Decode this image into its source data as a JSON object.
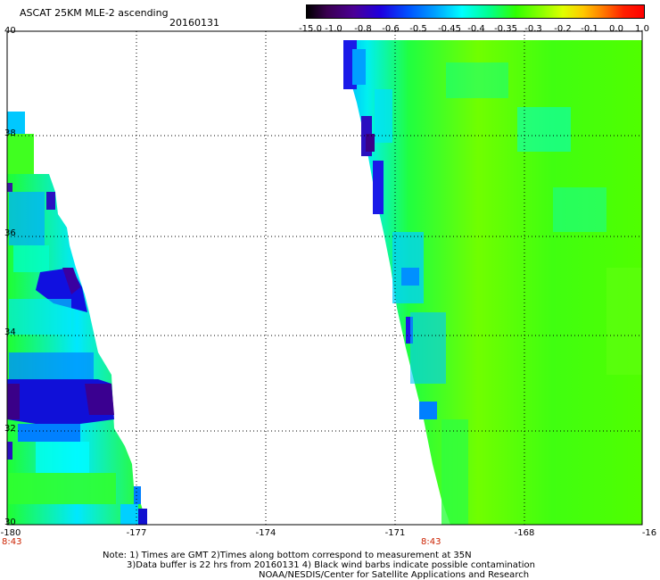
{
  "header": {
    "title": "ASCAT 25KM MLE-2 ascending",
    "date": "20160131"
  },
  "colorbar": {
    "ticks": [
      "-15.0",
      "-1.0",
      "-0.8",
      "-0.6",
      "-0.5",
      "-0.45",
      "-0.4",
      "-0.35",
      "-0.3",
      "-0.2",
      "-0.1",
      "0.0",
      "1.0"
    ]
  },
  "axes": {
    "x_ticks": [
      "-180",
      "-177",
      "-174",
      "-171",
      "-168",
      "-16"
    ],
    "y_ticks": [
      "40",
      "38",
      "36",
      "34",
      "32",
      "30"
    ]
  },
  "times": [
    "8:43",
    "8:43"
  ],
  "notes": {
    "line1": "Note: 1) Times are GMT 2)Times along bottom correspond to measurement at 35N",
    "line2": "3)Data buffer is 22 hrs from 20160131 4) Black wind barbs indicate possible contamination",
    "line3": "NOAA/NESDIS/Center for Satellite Applications and Research"
  }
}
